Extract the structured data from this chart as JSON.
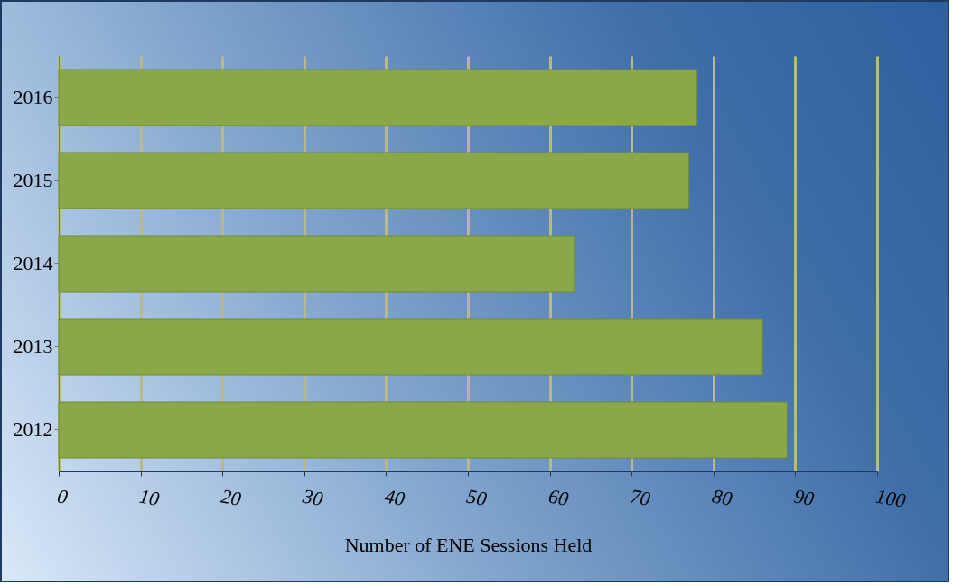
{
  "chart_data": {
    "type": "bar",
    "orientation": "horizontal",
    "xlabel": "Number of ENE Sessions Held",
    "categories": [
      "2016",
      "2015",
      "2014",
      "2013",
      "2012"
    ],
    "values": [
      78,
      77,
      63,
      86,
      89
    ],
    "color": "#8aa84a",
    "xlim": [
      0,
      100
    ],
    "xticks": [
      0,
      10,
      20,
      30,
      40,
      50,
      60,
      70,
      80,
      90,
      100
    ],
    "grid": "x"
  }
}
